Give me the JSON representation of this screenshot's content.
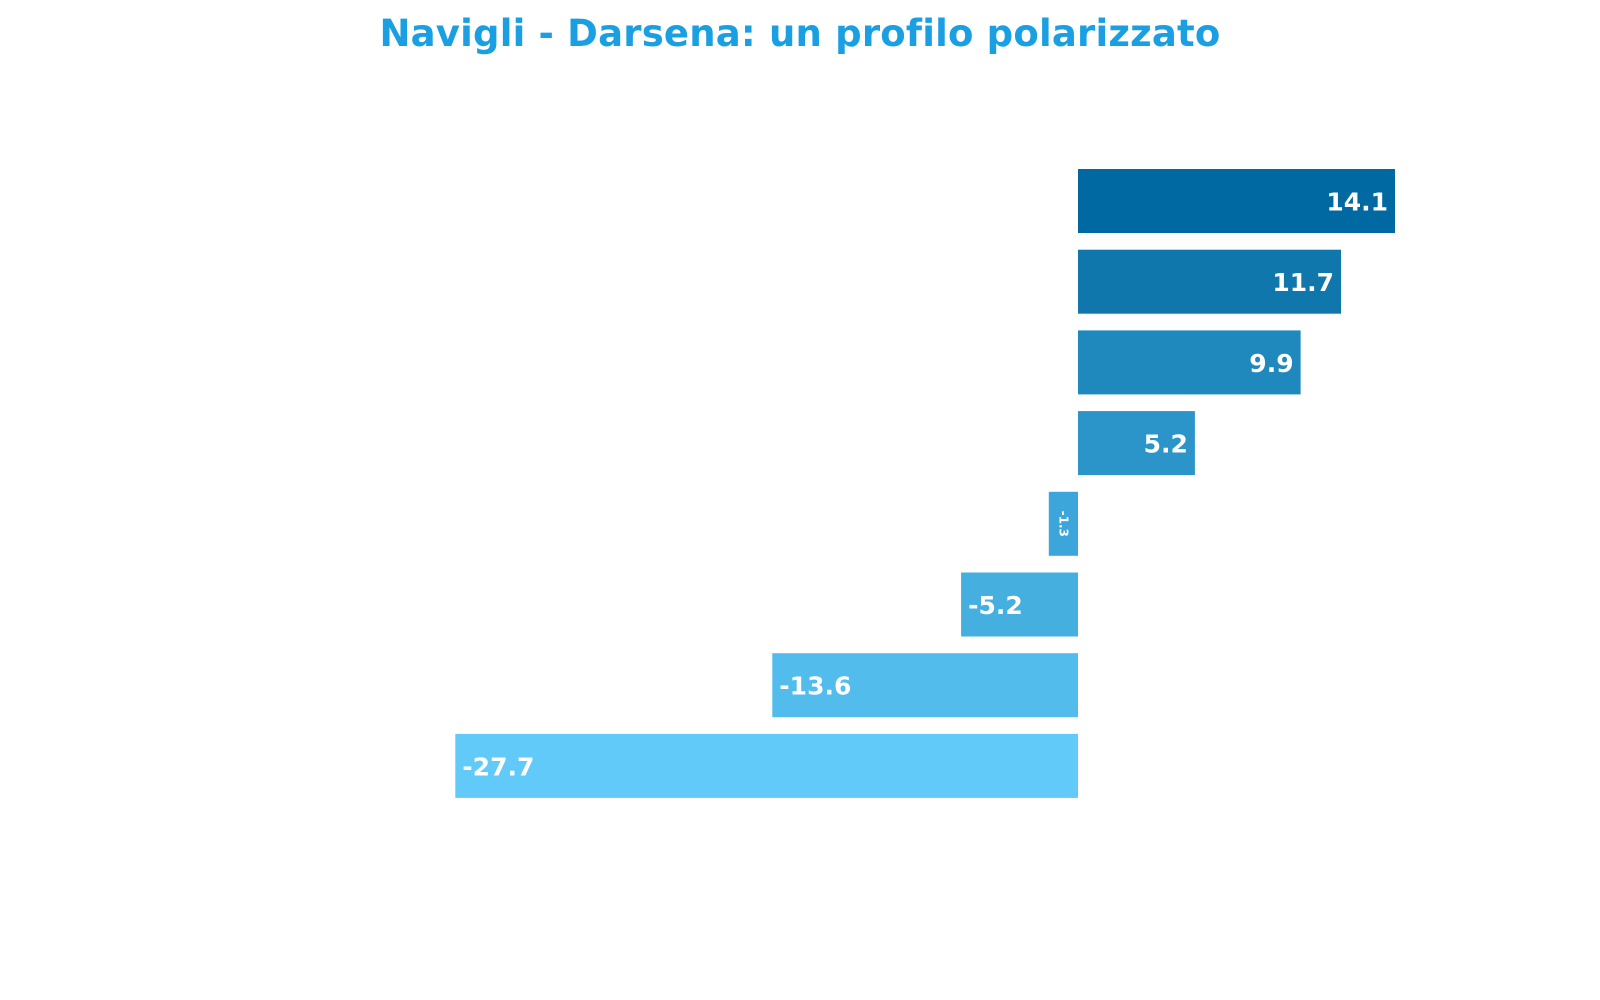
{
  "chart_data": {
    "type": "bar",
    "orientation": "horizontal",
    "title": "Navigli - Darsena: un profilo polarizzato",
    "xlabel": "",
    "ylabel": "",
    "grid": false,
    "legend": "none",
    "values": [
      14.1,
      11.7,
      9.9,
      5.2,
      -1.3,
      -5.2,
      -13.6,
      -27.7
    ],
    "data_labels": [
      "14.1",
      "11.7",
      "9.9",
      "5.2",
      "-1.3",
      "-5.2",
      "-13.6",
      "-27.7"
    ],
    "colors": [
      "#0069a1",
      "#1077ad",
      "#1f88bd",
      "#2b95c9",
      "#3ca5d9",
      "#45afe0",
      "#52bcec",
      "#62caf9"
    ],
    "title_color": "#1aa0e2",
    "label_color": "#ffffff"
  }
}
